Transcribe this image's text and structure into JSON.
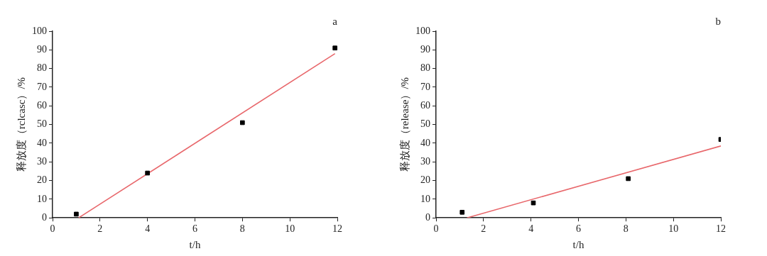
{
  "chart_data": [
    {
      "type": "scatter",
      "title": "a",
      "xlabel": "t/h",
      "ylabel": "释放度（rclcasc）/%",
      "xlim": [
        0,
        12
      ],
      "xticks": [
        0,
        2,
        4,
        6,
        8,
        10,
        12
      ],
      "ylim": [
        0,
        100
      ],
      "yticks": [
        0,
        10,
        20,
        30,
        40,
        50,
        60,
        70,
        80,
        90,
        100
      ],
      "grid": false,
      "legend": false,
      "marker": "square",
      "series": [
        {
          "type": "scatter",
          "color": "#000000",
          "x": [
            1,
            4,
            8,
            11.9
          ],
          "values": [
            2,
            24,
            51,
            91
          ]
        },
        {
          "type": "line",
          "color": "#e8676b",
          "marker": "none",
          "x": [
            1.1,
            11.9
          ],
          "values": [
            0,
            88
          ]
        }
      ]
    },
    {
      "type": "scatter",
      "title": "b",
      "xlabel": "t/h",
      "ylabel": "释放度（release）/%",
      "xlim": [
        0,
        12
      ],
      "xticks": [
        0,
        2,
        4,
        6,
        8,
        10,
        12
      ],
      "ylim": [
        0,
        100
      ],
      "yticks": [
        0,
        10,
        20,
        30,
        40,
        50,
        60,
        70,
        80,
        90,
        100
      ],
      "grid": false,
      "legend": false,
      "marker": "square",
      "series": [
        {
          "type": "scatter",
          "color": "#000000",
          "x": [
            1.1,
            4.1,
            8.1,
            12
          ],
          "values": [
            3,
            8,
            21,
            42
          ]
        },
        {
          "type": "line",
          "color": "#e8676b",
          "marker": "none",
          "x": [
            1.3,
            12
          ],
          "values": [
            0,
            38.5
          ]
        }
      ]
    }
  ]
}
